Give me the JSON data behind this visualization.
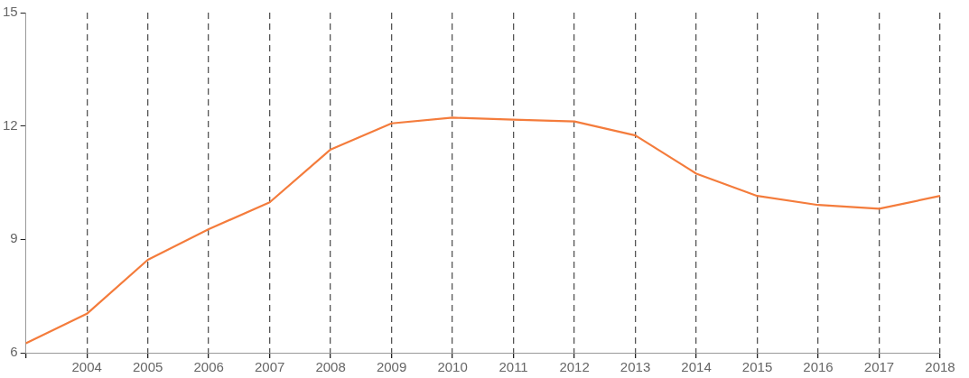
{
  "chart_data": {
    "type": "line",
    "categories": [
      null,
      "2004",
      "2005",
      "2006",
      "2007",
      "2008",
      "2009",
      "2010",
      "2011",
      "2012",
      "2013",
      "2014",
      "2015",
      "2016",
      "2017",
      "2018"
    ],
    "series": [
      {
        "color": "#f47c3c",
        "values": [
          6.25,
          7.03,
          8.46,
          9.27,
          9.98,
          11.38,
          12.07,
          12.22,
          12.17,
          12.12,
          11.75,
          10.74,
          10.15,
          9.91,
          9.81,
          10.15
        ]
      }
    ],
    "ylim": [
      6,
      15
    ],
    "yticks": [
      6,
      9,
      12,
      15
    ],
    "grid": "x",
    "legend": false,
    "marker": "none",
    "line_style": "solid"
  }
}
